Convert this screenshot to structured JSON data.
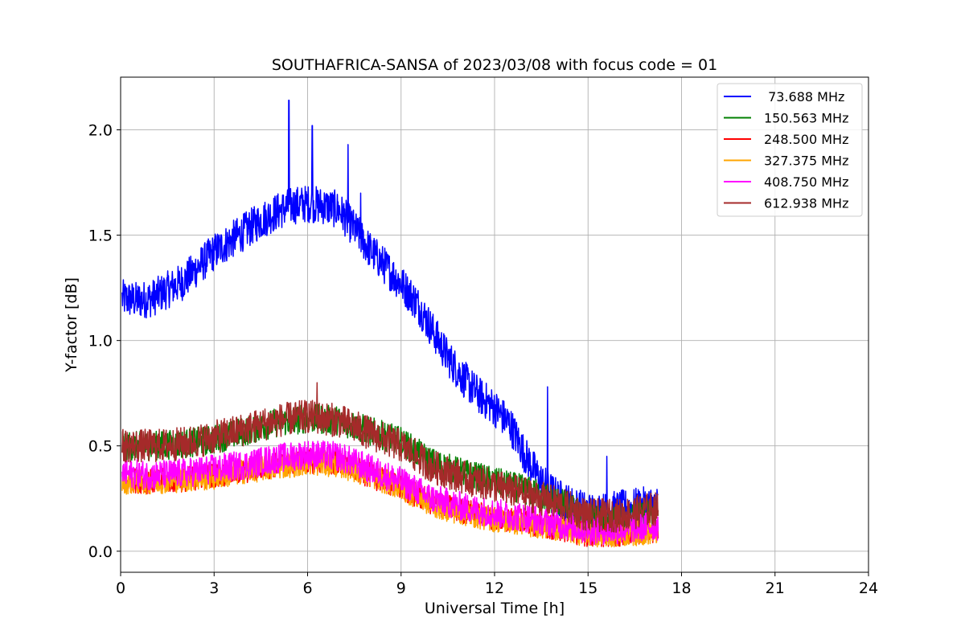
{
  "chart_data": {
    "type": "line",
    "title": "SOUTHAFRICA-SANSA of 2023/03/08 with focus code = 01",
    "xlabel": "Universal Time [h]",
    "ylabel": "Y-factor [dB]",
    "xlim": [
      0,
      24
    ],
    "ylim": [
      -0.1,
      2.25
    ],
    "xticks": [
      0,
      3,
      6,
      9,
      12,
      15,
      18,
      21,
      24
    ],
    "xtick_labels": [
      "0",
      "3",
      "6",
      "9",
      "12",
      "15",
      "18",
      "21",
      "24"
    ],
    "yticks": [
      0.0,
      0.5,
      1.0,
      1.5,
      2.0
    ],
    "ytick_labels": [
      "0.0",
      "0.5",
      "1.0",
      "1.5",
      "2.0"
    ],
    "grid": true,
    "legend_position": "top-right",
    "series": [
      {
        "name": " 73.688 MHz",
        "color": "#0000ff",
        "noise": 0.09,
        "x": [
          0.05,
          0.5,
          1.0,
          1.5,
          2.0,
          2.5,
          3.0,
          3.5,
          4.0,
          4.5,
          5.0,
          5.5,
          6.0,
          6.5,
          7.0,
          7.5,
          8.0,
          8.5,
          9.0,
          9.5,
          10.0,
          10.5,
          11.0,
          11.5,
          12.0,
          12.5,
          13.0,
          13.5,
          14.0,
          14.5,
          15.0,
          15.5,
          16.0,
          16.5,
          17.0,
          17.25
        ],
        "y": [
          1.2,
          1.19,
          1.2,
          1.24,
          1.28,
          1.35,
          1.42,
          1.47,
          1.52,
          1.57,
          1.61,
          1.64,
          1.65,
          1.64,
          1.62,
          1.53,
          1.43,
          1.35,
          1.27,
          1.18,
          1.05,
          0.92,
          0.82,
          0.74,
          0.68,
          0.6,
          0.45,
          0.33,
          0.26,
          0.22,
          0.19,
          0.19,
          0.2,
          0.21,
          0.22,
          0.22
        ],
        "spikes": [
          {
            "x": 5.4,
            "y": 2.14
          },
          {
            "x": 6.15,
            "y": 2.02
          },
          {
            "x": 7.3,
            "y": 1.93
          },
          {
            "x": 7.7,
            "y": 1.7
          },
          {
            "x": 13.7,
            "y": 0.78
          },
          {
            "x": 15.6,
            "y": 0.45
          }
        ]
      },
      {
        "name": "150.563 MHz",
        "color": "#008000",
        "noise": 0.07,
        "x": [
          0.05,
          1.0,
          2.0,
          3.0,
          4.0,
          5.0,
          6.0,
          7.0,
          8.0,
          9.0,
          10.0,
          11.0,
          12.0,
          13.0,
          14.0,
          15.0,
          16.0,
          17.0,
          17.25
        ],
        "y": [
          0.5,
          0.5,
          0.51,
          0.53,
          0.57,
          0.61,
          0.63,
          0.62,
          0.57,
          0.52,
          0.42,
          0.37,
          0.33,
          0.29,
          0.24,
          0.16,
          0.14,
          0.17,
          0.17
        ],
        "spikes": []
      },
      {
        "name": "248.500 MHz",
        "color": "#ff0000",
        "noise": 0.06,
        "x": [
          0.05,
          1.0,
          2.0,
          3.0,
          4.0,
          5.0,
          6.0,
          7.0,
          8.0,
          9.0,
          10.0,
          11.0,
          12.0,
          13.0,
          14.0,
          15.0,
          16.0,
          17.0,
          17.25
        ],
        "y": [
          0.34,
          0.33,
          0.34,
          0.36,
          0.38,
          0.41,
          0.43,
          0.42,
          0.36,
          0.3,
          0.23,
          0.19,
          0.16,
          0.14,
          0.11,
          0.08,
          0.08,
          0.1,
          0.1
        ],
        "spikes": []
      },
      {
        "name": "327.375 MHz",
        "color": "#ffa500",
        "noise": 0.06,
        "x": [
          0.05,
          1.0,
          2.0,
          3.0,
          4.0,
          5.0,
          6.0,
          7.0,
          8.0,
          9.0,
          10.0,
          11.0,
          12.0,
          13.0,
          14.0,
          15.0,
          16.0,
          17.0,
          17.25
        ],
        "y": [
          0.33,
          0.33,
          0.34,
          0.35,
          0.38,
          0.4,
          0.42,
          0.41,
          0.36,
          0.3,
          0.22,
          0.18,
          0.15,
          0.13,
          0.11,
          0.08,
          0.08,
          0.09,
          0.09
        ],
        "spikes": []
      },
      {
        "name": "408.750 MHz",
        "color": "#ff00ff",
        "noise": 0.07,
        "x": [
          0.05,
          1.0,
          2.0,
          3.0,
          4.0,
          5.0,
          6.0,
          7.0,
          8.0,
          9.0,
          10.0,
          11.0,
          12.0,
          13.0,
          14.0,
          15.0,
          16.0,
          17.0,
          17.25
        ],
        "y": [
          0.37,
          0.36,
          0.37,
          0.39,
          0.41,
          0.44,
          0.46,
          0.45,
          0.39,
          0.33,
          0.25,
          0.21,
          0.18,
          0.16,
          0.13,
          0.1,
          0.1,
          0.12,
          0.12
        ],
        "spikes": []
      },
      {
        "name": "612.938 MHz",
        "color": "#a52a2a",
        "noise": 0.08,
        "x": [
          0.05,
          1.0,
          2.0,
          3.0,
          4.0,
          5.0,
          6.0,
          7.0,
          8.0,
          9.0,
          10.0,
          11.0,
          12.0,
          13.0,
          14.0,
          15.0,
          16.0,
          17.0,
          17.25
        ],
        "y": [
          0.5,
          0.5,
          0.51,
          0.54,
          0.58,
          0.62,
          0.64,
          0.62,
          0.56,
          0.5,
          0.4,
          0.35,
          0.31,
          0.27,
          0.23,
          0.17,
          0.17,
          0.2,
          0.2
        ],
        "spikes": [
          {
            "x": 6.3,
            "y": 0.8
          }
        ]
      }
    ]
  }
}
